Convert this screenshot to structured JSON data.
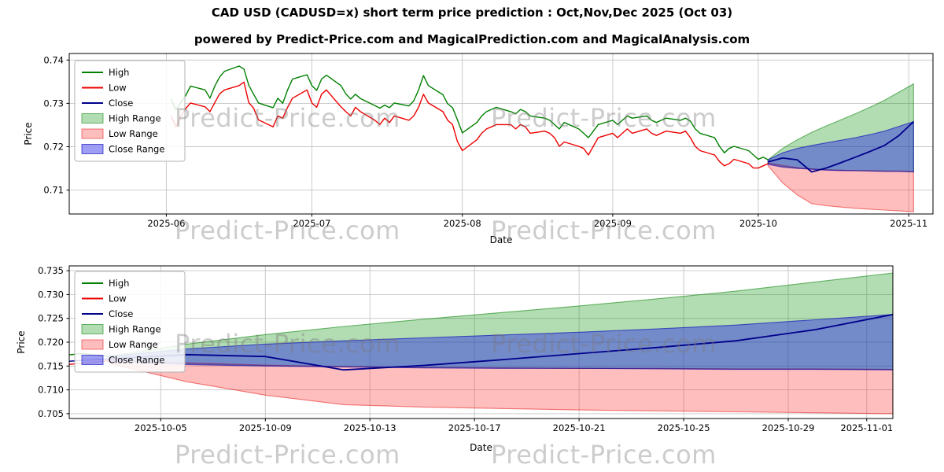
{
  "page": {
    "title": "CAD USD (CADUSD=x) short term price prediction : Oct,Nov,Dec 2025 (Oct 03)",
    "subtitle": "powered by Predict-Price.com and MagicalPrediction.com and MagicalAnalysis.com",
    "watermark": "Predict-Price.com",
    "background": "#ffffff"
  },
  "colors": {
    "high": "#008000",
    "low": "#ee0000",
    "close": "#00008b",
    "high_range": "rgba(0,140,0,0.30)",
    "high_range_edge": "rgba(0,128,0,0.55)",
    "low_range": "rgba(255,40,40,0.30)",
    "low_range_edge": "rgba(225,0,0,0.50)",
    "close_range": "rgba(40,40,230,0.45)",
    "close_range_edge": "rgba(0,0,180,0.60)",
    "grid": "#c6c6c6",
    "axis": "#000000",
    "watermark": "rgba(122,122,122,0.38)"
  },
  "chart_data": [
    {
      "type": "line",
      "name": "history-with-forecast",
      "xlabel": "Date",
      "ylabel": "Price",
      "x_unit": "days-since-2025-06-01",
      "xlim": [
        -20,
        158
      ],
      "ylim": [
        0.7045,
        0.7415
      ],
      "grid": true,
      "legend_position": "upper-left",
      "legend": [
        {
          "label": "High",
          "type": "line",
          "color": "high"
        },
        {
          "label": "Low",
          "type": "line",
          "color": "low"
        },
        {
          "label": "Close",
          "type": "line",
          "color": "close"
        },
        {
          "label": "High Range",
          "type": "patch",
          "color": "high_range"
        },
        {
          "label": "Low Range",
          "type": "patch",
          "color": "low_range"
        },
        {
          "label": "Close Range",
          "type": "patch",
          "color": "close_range"
        }
      ],
      "xticks": [
        {
          "v": 0,
          "label": "2025-06"
        },
        {
          "v": 30,
          "label": "2025-07"
        },
        {
          "v": 61,
          "label": "2025-08"
        },
        {
          "v": 92,
          "label": "2025-09"
        },
        {
          "v": 122,
          "label": "2025-10"
        },
        {
          "v": 153,
          "label": "2025-11"
        }
      ],
      "yticks": [
        {
          "v": 0.71,
          "label": "0.71"
        },
        {
          "v": 0.72,
          "label": "0.72"
        },
        {
          "v": 0.73,
          "label": "0.73"
        },
        {
          "v": 0.74,
          "label": "0.74"
        }
      ],
      "historical": {
        "dates": [
          1,
          2,
          3,
          4,
          5,
          8,
          9,
          10,
          11,
          12,
          15,
          16,
          17,
          18,
          19,
          22,
          23,
          24,
          25,
          26,
          29,
          30,
          31,
          32,
          33,
          36,
          37,
          38,
          39,
          40,
          43,
          44,
          45,
          46,
          47,
          50,
          51,
          52,
          53,
          54,
          57,
          58,
          59,
          60,
          61,
          64,
          65,
          66,
          67,
          68,
          71,
          72,
          73,
          74,
          75,
          78,
          79,
          80,
          81,
          82,
          85,
          86,
          87,
          88,
          89,
          92,
          93,
          94,
          95,
          96,
          99,
          100,
          101,
          102,
          103,
          106,
          107,
          108,
          109,
          110,
          113,
          114,
          115,
          116,
          117,
          120,
          121,
          122,
          123,
          124
        ],
        "high": [
          0.731,
          0.7285,
          0.7302,
          0.7318,
          0.734,
          0.7331,
          0.7312,
          0.734,
          0.7361,
          0.7374,
          0.7386,
          0.7379,
          0.7342,
          0.7321,
          0.7301,
          0.729,
          0.7312,
          0.73,
          0.7331,
          0.7356,
          0.7366,
          0.7341,
          0.733,
          0.7356,
          0.7365,
          0.7341,
          0.7322,
          0.731,
          0.7321,
          0.7311,
          0.7295,
          0.7289,
          0.7296,
          0.729,
          0.7301,
          0.7294,
          0.7306,
          0.7331,
          0.7364,
          0.7341,
          0.732,
          0.7299,
          0.729,
          0.7262,
          0.7232,
          0.7256,
          0.7271,
          0.7281,
          0.7286,
          0.7291,
          0.7281,
          0.7276,
          0.7286,
          0.7281,
          0.7271,
          0.7266,
          0.7261,
          0.7251,
          0.7241,
          0.7256,
          0.7241,
          0.7231,
          0.7221,
          0.7236,
          0.7251,
          0.7261,
          0.7251,
          0.7261,
          0.7271,
          0.7266,
          0.7271,
          0.7261,
          0.7256,
          0.7261,
          0.7266,
          0.7261,
          0.7266,
          0.7259,
          0.7241,
          0.7231,
          0.7221,
          0.7201,
          0.7186,
          0.7196,
          0.7201,
          0.7191,
          0.7181,
          0.7171,
          0.7176,
          0.717
        ],
        "low": [
          0.7271,
          0.7246,
          0.727,
          0.7288,
          0.7301,
          0.7292,
          0.7281,
          0.7302,
          0.7322,
          0.7331,
          0.7341,
          0.7349,
          0.7302,
          0.7289,
          0.7262,
          0.7246,
          0.7271,
          0.7266,
          0.7291,
          0.7312,
          0.7331,
          0.7301,
          0.7291,
          0.7321,
          0.7331,
          0.7292,
          0.7281,
          0.7271,
          0.7291,
          0.7281,
          0.7261,
          0.7251,
          0.7266,
          0.7256,
          0.7271,
          0.7261,
          0.7271,
          0.7291,
          0.7321,
          0.7301,
          0.7281,
          0.7261,
          0.7251,
          0.7212,
          0.7191,
          0.7216,
          0.7231,
          0.7241,
          0.7246,
          0.7251,
          0.7251,
          0.7241,
          0.7251,
          0.7246,
          0.7231,
          0.7236,
          0.7231,
          0.7221,
          0.7201,
          0.7211,
          0.7201,
          0.7196,
          0.7181,
          0.7201,
          0.7221,
          0.7231,
          0.7221,
          0.7231,
          0.7241,
          0.7231,
          0.7241,
          0.7231,
          0.7226,
          0.7231,
          0.7236,
          0.7231,
          0.7236,
          0.7221,
          0.7201,
          0.7191,
          0.7181,
          0.7166,
          0.7156,
          0.7161,
          0.7171,
          0.7161,
          0.7151,
          0.7151,
          0.7156,
          0.7161
        ]
      },
      "forecast": {
        "dates": [
          124,
          127,
          130,
          133,
          136,
          139,
          142,
          145,
          148,
          151,
          154
        ],
        "close": [
          0.7165,
          0.7174,
          0.717,
          0.7142,
          0.7151,
          0.7163,
          0.7176,
          0.7189,
          0.7203,
          0.7226,
          0.7258
        ],
        "high_range_max": [
          0.717,
          0.7196,
          0.7216,
          0.7233,
          0.7248,
          0.7262,
          0.7276,
          0.7291,
          0.7307,
          0.7326,
          0.7345
        ],
        "high_range_min": [
          0.7162,
          0.7155,
          0.7151,
          0.7149,
          0.7147,
          0.7146,
          0.7145,
          0.7145,
          0.7144,
          0.7144,
          0.7143
        ],
        "low_range_max": [
          0.7163,
          0.7157,
          0.7152,
          0.7149,
          0.7147,
          0.7146,
          0.7145,
          0.7145,
          0.7144,
          0.7144,
          0.7143
        ],
        "low_range_min": [
          0.7156,
          0.7117,
          0.7089,
          0.7069,
          0.7064,
          0.7061,
          0.7058,
          0.7056,
          0.7054,
          0.7052,
          0.705
        ],
        "close_range_max": [
          0.717,
          0.7186,
          0.7196,
          0.7203,
          0.7209,
          0.7215,
          0.7221,
          0.7228,
          0.7236,
          0.7247,
          0.7258
        ],
        "close_range_min": [
          0.7159,
          0.7153,
          0.715,
          0.7148,
          0.7146,
          0.7145,
          0.7145,
          0.7144,
          0.7143,
          0.7143,
          0.7142
        ]
      }
    },
    {
      "type": "line",
      "name": "forecast-zoom",
      "xlabel": "Date",
      "ylabel": "Price",
      "x_unit": "days-since-2025-06-01",
      "xlim": [
        122.5,
        154
      ],
      "ylim": [
        0.704,
        0.736
      ],
      "grid": true,
      "legend_position": "upper-left",
      "legend": [
        {
          "label": "High",
          "type": "line",
          "color": "high"
        },
        {
          "label": "Low",
          "type": "line",
          "color": "low"
        },
        {
          "label": "Close",
          "type": "line",
          "color": "close"
        },
        {
          "label": "High Range",
          "type": "patch",
          "color": "high_range"
        },
        {
          "label": "Low Range",
          "type": "patch",
          "color": "low_range"
        },
        {
          "label": "Close Range",
          "type": "patch",
          "color": "close_range"
        }
      ],
      "xticks": [
        {
          "v": 126,
          "label": "2025-10-05"
        },
        {
          "v": 130,
          "label": "2025-10-09"
        },
        {
          "v": 134,
          "label": "2025-10-13"
        },
        {
          "v": 138,
          "label": "2025-10-17"
        },
        {
          "v": 142,
          "label": "2025-10-21"
        },
        {
          "v": 146,
          "label": "2025-10-25"
        },
        {
          "v": 150,
          "label": "2025-10-29"
        },
        {
          "v": 153,
          "label": "2025-11-01"
        }
      ],
      "yticks": [
        {
          "v": 0.705,
          "label": "0.705"
        },
        {
          "v": 0.71,
          "label": "0.710"
        },
        {
          "v": 0.715,
          "label": "0.715"
        },
        {
          "v": 0.72,
          "label": "0.720"
        },
        {
          "v": 0.725,
          "label": "0.725"
        },
        {
          "v": 0.73,
          "label": "0.730"
        },
        {
          "v": 0.735,
          "label": "0.735"
        }
      ],
      "historical": {
        "dates": [
          122,
          123,
          124
        ],
        "high": [
          0.7171,
          0.7176,
          0.717
        ],
        "low": [
          0.7151,
          0.7156,
          0.7161
        ],
        "close": [
          0.7158,
          0.7162,
          0.7165
        ]
      },
      "forecast": {
        "dates": [
          124,
          127,
          130,
          133,
          136,
          139,
          142,
          145,
          148,
          151,
          154
        ],
        "close": [
          0.7165,
          0.7174,
          0.717,
          0.7142,
          0.7151,
          0.7163,
          0.7176,
          0.7189,
          0.7203,
          0.7226,
          0.7258
        ],
        "high_range_max": [
          0.717,
          0.7196,
          0.7216,
          0.7233,
          0.7248,
          0.7262,
          0.7276,
          0.7291,
          0.7307,
          0.7326,
          0.7345
        ],
        "high_range_min": [
          0.7162,
          0.7155,
          0.7151,
          0.7149,
          0.7147,
          0.7146,
          0.7145,
          0.7145,
          0.7144,
          0.7144,
          0.7143
        ],
        "low_range_max": [
          0.7163,
          0.7157,
          0.7152,
          0.7149,
          0.7147,
          0.7146,
          0.7145,
          0.7145,
          0.7144,
          0.7144,
          0.7143
        ],
        "low_range_min": [
          0.7156,
          0.7117,
          0.7089,
          0.7069,
          0.7064,
          0.7061,
          0.7058,
          0.7056,
          0.7054,
          0.7052,
          0.705
        ],
        "close_range_max": [
          0.717,
          0.7186,
          0.7196,
          0.7203,
          0.7209,
          0.7215,
          0.7221,
          0.7228,
          0.7236,
          0.7247,
          0.7258
        ],
        "close_range_min": [
          0.7159,
          0.7153,
          0.715,
          0.7148,
          0.7146,
          0.7145,
          0.7145,
          0.7144,
          0.7143,
          0.7143,
          0.7142
        ]
      }
    }
  ]
}
